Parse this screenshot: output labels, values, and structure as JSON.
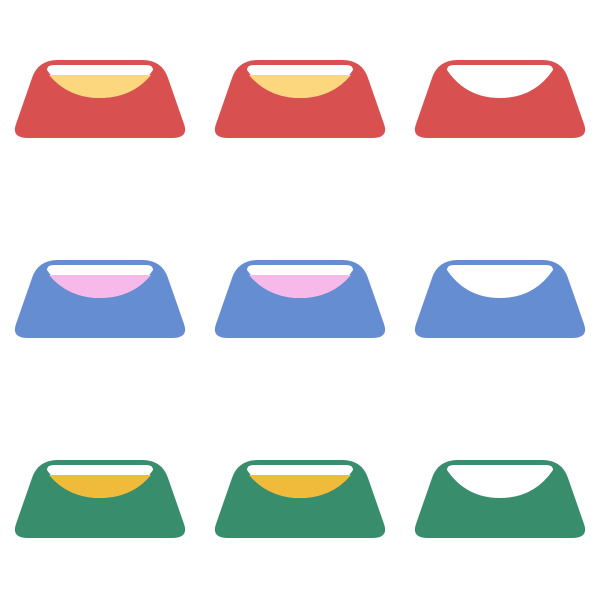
{
  "grid": {
    "rows": [
      {
        "row_name": "red",
        "bowl_color": "#d95050",
        "bowls": [
          {
            "name": "red-bowl-1",
            "filled": true,
            "fill_color": "#fdd77e"
          },
          {
            "name": "red-bowl-2",
            "filled": true,
            "fill_color": "#fdd77e"
          },
          {
            "name": "red-bowl-3",
            "filled": false,
            "fill_color": ""
          }
        ]
      },
      {
        "row_name": "blue",
        "bowl_color": "#658dd1",
        "bowls": [
          {
            "name": "blue-bowl-1",
            "filled": true,
            "fill_color": "#f7b9ea"
          },
          {
            "name": "blue-bowl-2",
            "filled": true,
            "fill_color": "#f7b9ea"
          },
          {
            "name": "blue-bowl-3",
            "filled": false,
            "fill_color": ""
          }
        ]
      },
      {
        "row_name": "green",
        "bowl_color": "#388d6c",
        "bowls": [
          {
            "name": "green-bowl-1",
            "filled": true,
            "fill_color": "#f0ba3a"
          },
          {
            "name": "green-bowl-2",
            "filled": true,
            "fill_color": "#f0ba3a"
          },
          {
            "name": "green-bowl-3",
            "filled": false,
            "fill_color": ""
          }
        ]
      }
    ]
  }
}
